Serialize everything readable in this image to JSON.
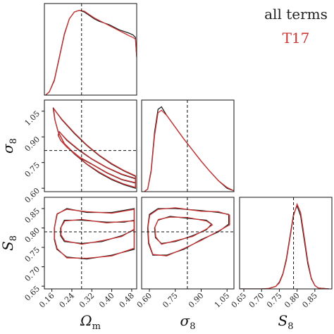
{
  "chart_data": [
    {
      "type": "line",
      "xlim": [
        0.13,
        0.5
      ],
      "ylim": [
        0,
        1.08
      ],
      "vlines": [
        0.279
      ],
      "series": [
        {
          "name": "all terms",
          "color": "#222222",
          "x": [
            0.135,
            0.15,
            0.17,
            0.19,
            0.21,
            0.23,
            0.25,
            0.27,
            0.29,
            0.31,
            0.33,
            0.35,
            0.37,
            0.39,
            0.41,
            0.43,
            0.45,
            0.47,
            0.485,
            0.495,
            0.5
          ],
          "values": [
            0.0,
            0.04,
            0.18,
            0.45,
            0.72,
            0.9,
            0.98,
            1.0,
            0.98,
            0.94,
            0.9,
            0.87,
            0.85,
            0.83,
            0.8,
            0.77,
            0.75,
            0.73,
            0.71,
            0.68,
            0.45
          ]
        },
        {
          "name": "T17",
          "color": "#cc3333",
          "x": [
            0.135,
            0.15,
            0.17,
            0.19,
            0.21,
            0.23,
            0.25,
            0.27,
            0.29,
            0.31,
            0.33,
            0.35,
            0.37,
            0.39,
            0.41,
            0.43,
            0.45,
            0.47,
            0.485,
            0.495,
            0.5
          ],
          "values": [
            0.0,
            0.04,
            0.17,
            0.44,
            0.71,
            0.9,
            0.98,
            1.0,
            0.99,
            0.95,
            0.91,
            0.88,
            0.85,
            0.82,
            0.79,
            0.76,
            0.73,
            0.7,
            0.68,
            0.66,
            0.45
          ]
        }
      ]
    },
    {
      "type": "contour",
      "xlim": [
        0.13,
        0.5
      ],
      "ylim": [
        0.58,
        1.115
      ],
      "vlines": [
        0.279
      ],
      "hlines": [
        0.82
      ],
      "ylabel": {
        "symbol": "σ",
        "subscript": "8"
      },
      "yticks": [
        1.05,
        {
          "value": 0.9,
          "label": "0.90"
        },
        0.75,
        {
          "value": 0.6,
          "label": "0.60"
        }
      ],
      "series": [
        {
          "name": "all terms",
          "color": "#222222",
          "x": [
            0.165,
            0.2,
            0.25,
            0.3,
            0.35,
            0.4,
            0.45,
            0.495,
            0.495,
            0.45,
            0.4,
            0.35,
            0.3,
            0.25,
            0.21,
            0.185,
            0.172
          ],
          "values": [
            1.07,
            1.0,
            0.92,
            0.85,
            0.79,
            0.74,
            0.7,
            0.67,
            0.6,
            0.62,
            0.65,
            0.69,
            0.74,
            0.8,
            0.86,
            0.93,
            1.0
          ]
        },
        {
          "name": "all terms",
          "color": "#222222",
          "x": [
            0.19,
            0.22,
            0.27,
            0.32,
            0.38,
            0.44,
            0.495,
            0.495,
            0.44,
            0.38,
            0.32,
            0.27,
            0.22,
            0.195,
            0.185
          ],
          "values": [
            0.93,
            0.88,
            0.82,
            0.77,
            0.72,
            0.68,
            0.655,
            0.63,
            0.65,
            0.69,
            0.74,
            0.78,
            0.84,
            0.88,
            0.91
          ]
        },
        {
          "name": "T17",
          "color": "#cc3333",
          "x": [
            0.167,
            0.2,
            0.25,
            0.3,
            0.35,
            0.4,
            0.45,
            0.495,
            0.495,
            0.45,
            0.4,
            0.35,
            0.3,
            0.25,
            0.21,
            0.186,
            0.173
          ],
          "values": [
            1.065,
            1.003,
            0.924,
            0.853,
            0.793,
            0.744,
            0.703,
            0.673,
            0.605,
            0.624,
            0.654,
            0.694,
            0.742,
            0.803,
            0.862,
            0.928,
            0.995
          ]
        },
        {
          "name": "T17",
          "color": "#cc3333",
          "x": [
            0.191,
            0.22,
            0.27,
            0.32,
            0.38,
            0.44,
            0.495,
            0.495,
            0.44,
            0.38,
            0.32,
            0.27,
            0.22,
            0.196,
            0.186
          ],
          "values": [
            0.928,
            0.883,
            0.823,
            0.772,
            0.722,
            0.683,
            0.658,
            0.633,
            0.652,
            0.692,
            0.742,
            0.783,
            0.842,
            0.878,
            0.908
          ]
        }
      ]
    },
    {
      "type": "line",
      "xlim": [
        0.555,
        1.09
      ],
      "ylim": [
        0,
        1.08
      ],
      "vlines": [
        0.82
      ],
      "series": [
        {
          "name": "all terms",
          "color": "#222222",
          "x": [
            0.57,
            0.59,
            0.61,
            0.63,
            0.65,
            0.67,
            0.7,
            0.75,
            0.8,
            0.85,
            0.9,
            0.95,
            1.0,
            1.05,
            1.09
          ],
          "values": [
            0.0,
            0.03,
            0.25,
            0.7,
            0.97,
            1.0,
            0.9,
            0.76,
            0.62,
            0.49,
            0.36,
            0.24,
            0.13,
            0.04,
            0.01
          ]
        },
        {
          "name": "T17",
          "color": "#cc3333",
          "x": [
            0.57,
            0.59,
            0.61,
            0.63,
            0.65,
            0.67,
            0.7,
            0.75,
            0.8,
            0.85,
            0.9,
            0.95,
            1.0,
            1.05,
            1.09
          ],
          "values": [
            0.0,
            0.03,
            0.23,
            0.66,
            0.93,
            0.96,
            0.9,
            0.76,
            0.62,
            0.49,
            0.36,
            0.24,
            0.13,
            0.05,
            0.01
          ]
        }
      ]
    },
    {
      "type": "contour",
      "xlim": [
        0.13,
        0.5
      ],
      "ylim": [
        0.643,
        0.879
      ],
      "vlines": [
        0.279
      ],
      "hlines": [
        0.79
      ],
      "xlabel": {
        "symbol": "Ω",
        "subscript": "m"
      },
      "ylabel": {
        "symbol": "S",
        "subscript": "8"
      },
      "xticks": [
        0.16,
        0.24,
        0.32,
        {
          "value": 0.4,
          "label": "0.40"
        },
        0.48
      ],
      "yticks": [
        0.85,
        {
          "value": 0.8,
          "label": "0.80"
        },
        0.75,
        {
          "value": 0.7,
          "label": "0.70"
        },
        0.65
      ],
      "series": [
        {
          "name": "all terms",
          "color": "#222222",
          "x": [
            0.17,
            0.18,
            0.22,
            0.3,
            0.4,
            0.49,
            0.49,
            0.4,
            0.3,
            0.22,
            0.18,
            0.17
          ],
          "values": [
            0.8,
            0.835,
            0.85,
            0.84,
            0.84,
            0.85,
            0.745,
            0.73,
            0.72,
            0.725,
            0.745,
            0.77
          ]
        },
        {
          "name": "all terms",
          "color": "#222222",
          "x": [
            0.195,
            0.21,
            0.28,
            0.38,
            0.45,
            0.49,
            0.49,
            0.44,
            0.36,
            0.28,
            0.21,
            0.195
          ],
          "values": [
            0.8,
            0.82,
            0.82,
            0.815,
            0.815,
            0.82,
            0.795,
            0.78,
            0.765,
            0.76,
            0.765,
            0.78
          ]
        },
        {
          "name": "T17",
          "color": "#cc3333",
          "x": [
            0.171,
            0.182,
            0.22,
            0.3,
            0.4,
            0.49,
            0.49,
            0.4,
            0.3,
            0.22,
            0.181,
            0.171
          ],
          "values": [
            0.802,
            0.837,
            0.848,
            0.842,
            0.838,
            0.848,
            0.748,
            0.728,
            0.722,
            0.723,
            0.747,
            0.772
          ]
        },
        {
          "name": "T17",
          "color": "#cc3333",
          "x": [
            0.197,
            0.212,
            0.28,
            0.38,
            0.45,
            0.49,
            0.49,
            0.44,
            0.36,
            0.28,
            0.212,
            0.197
          ],
          "values": [
            0.802,
            0.818,
            0.822,
            0.813,
            0.817,
            0.818,
            0.797,
            0.778,
            0.767,
            0.758,
            0.767,
            0.782
          ]
        }
      ]
    },
    {
      "type": "contour",
      "xlim": [
        0.555,
        1.09
      ],
      "ylim": [
        0.643,
        0.879
      ],
      "vlines": [
        0.82
      ],
      "hlines": [
        0.79
      ],
      "xlabel": {
        "symbol": "σ",
        "subscript": "8"
      },
      "xticks": [
        {
          "value": 0.6,
          "label": "0.60"
        },
        0.75,
        {
          "value": 0.9,
          "label": "0.90"
        },
        1.05
      ],
      "series": [
        {
          "name": "all terms",
          "color": "#222222",
          "x": [
            0.59,
            0.6,
            0.65,
            0.75,
            0.9,
            1.0,
            1.06,
            1.06,
            1.0,
            0.9,
            0.8,
            0.7,
            0.62,
            0.595
          ],
          "values": [
            0.8,
            0.835,
            0.85,
            0.85,
            0.845,
            0.84,
            0.835,
            0.81,
            0.79,
            0.77,
            0.745,
            0.73,
            0.73,
            0.76
          ]
        },
        {
          "name": "all terms",
          "color": "#222222",
          "x": [
            0.63,
            0.65,
            0.72,
            0.82,
            0.93,
            0.96,
            0.93,
            0.85,
            0.75,
            0.67,
            0.635
          ],
          "values": [
            0.8,
            0.82,
            0.83,
            0.825,
            0.82,
            0.81,
            0.795,
            0.78,
            0.765,
            0.76,
            0.775
          ]
        },
        {
          "name": "T17",
          "color": "#cc3333",
          "x": [
            0.592,
            0.602,
            0.65,
            0.75,
            0.9,
            1.0,
            1.065,
            1.065,
            1.0,
            0.9,
            0.8,
            0.7,
            0.62,
            0.597
          ],
          "values": [
            0.802,
            0.833,
            0.848,
            0.852,
            0.843,
            0.842,
            0.833,
            0.808,
            0.792,
            0.768,
            0.747,
            0.728,
            0.732,
            0.762
          ]
        },
        {
          "name": "T17",
          "color": "#cc3333",
          "x": [
            0.632,
            0.652,
            0.72,
            0.82,
            0.93,
            0.965,
            0.93,
            0.85,
            0.75,
            0.67,
            0.637
          ],
          "values": [
            0.802,
            0.822,
            0.828,
            0.827,
            0.818,
            0.808,
            0.797,
            0.778,
            0.767,
            0.758,
            0.777
          ]
        }
      ]
    },
    {
      "type": "line",
      "xlim": [
        0.638,
        0.898
      ],
      "ylim": [
        0,
        1.08
      ],
      "vlines": [
        0.79
      ],
      "xlabel": {
        "symbol": "S",
        "subscript": "8"
      },
      "xticks": [
        0.65,
        {
          "value": 0.7,
          "label": "0.70"
        },
        0.75,
        {
          "value": 0.8,
          "label": "0.80"
        },
        0.85
      ],
      "series": [
        {
          "name": "all terms",
          "color": "#222222",
          "x": [
            0.64,
            0.7,
            0.72,
            0.74,
            0.75,
            0.76,
            0.77,
            0.78,
            0.79,
            0.8,
            0.81,
            0.82,
            0.83,
            0.84,
            0.85,
            0.86,
            0.89
          ],
          "values": [
            0,
            0,
            0.005,
            0.03,
            0.08,
            0.18,
            0.36,
            0.62,
            0.88,
            0.98,
            0.86,
            0.58,
            0.3,
            0.12,
            0.04,
            0.01,
            0
          ]
        },
        {
          "name": "T17",
          "color": "#cc3333",
          "x": [
            0.64,
            0.7,
            0.72,
            0.74,
            0.75,
            0.76,
            0.77,
            0.78,
            0.79,
            0.8,
            0.81,
            0.82,
            0.83,
            0.84,
            0.85,
            0.86,
            0.89
          ],
          "values": [
            0,
            0,
            0.005,
            0.03,
            0.07,
            0.17,
            0.34,
            0.6,
            0.86,
            1.0,
            0.9,
            0.62,
            0.33,
            0.13,
            0.04,
            0.01,
            0
          ]
        }
      ]
    }
  ]
}
